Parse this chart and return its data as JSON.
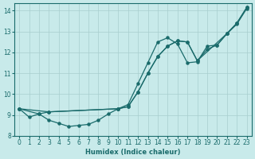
{
  "xlabel": "Humidex (Indice chaleur)",
  "bg_color": "#c8eaea",
  "line_color": "#1a6b6b",
  "grid_color": "#a8cece",
  "xlim": [
    -0.5,
    23.5
  ],
  "ylim": [
    8.0,
    14.35
  ],
  "xticks": [
    0,
    1,
    2,
    3,
    4,
    5,
    6,
    7,
    8,
    9,
    10,
    11,
    12,
    13,
    14,
    15,
    16,
    17,
    18,
    19,
    20,
    21,
    22,
    23
  ],
  "yticks": [
    8,
    9,
    10,
    11,
    12,
    13,
    14
  ],
  "line_A_x": [
    0,
    1,
    2,
    3,
    4,
    5,
    6,
    7,
    8,
    9,
    10,
    11,
    12,
    13,
    14,
    15,
    16,
    17,
    18,
    19,
    20,
    21,
    22,
    23
  ],
  "line_A_y": [
    9.3,
    8.9,
    9.05,
    8.75,
    8.6,
    8.45,
    8.5,
    8.55,
    8.75,
    9.05,
    9.3,
    9.5,
    10.5,
    11.5,
    12.5,
    12.7,
    12.4,
    11.5,
    11.55,
    12.3,
    12.35,
    12.9,
    13.35,
    14.1
  ],
  "line_B_x": [
    0,
    3,
    10,
    11,
    12,
    13,
    14,
    15,
    16,
    17,
    18,
    19,
    20,
    21,
    22,
    23
  ],
  "line_B_y": [
    9.3,
    9.15,
    9.3,
    9.4,
    10.1,
    11.0,
    11.8,
    12.3,
    12.55,
    12.5,
    11.6,
    12.15,
    12.35,
    12.9,
    13.4,
    14.15
  ],
  "line_C_x": [
    0,
    2,
    3,
    10,
    11,
    12,
    13,
    14,
    15,
    16,
    17,
    18,
    21,
    22,
    23
  ],
  "line_C_y": [
    9.3,
    9.05,
    9.15,
    9.3,
    9.4,
    10.1,
    11.0,
    11.8,
    12.3,
    12.55,
    12.5,
    11.6,
    12.9,
    13.4,
    14.15
  ]
}
